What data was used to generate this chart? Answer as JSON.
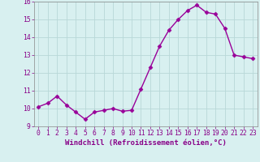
{
  "x": [
    0,
    1,
    2,
    3,
    4,
    5,
    6,
    7,
    8,
    9,
    10,
    11,
    12,
    13,
    14,
    15,
    16,
    17,
    18,
    19,
    20,
    21,
    22,
    23
  ],
  "y": [
    10.1,
    10.3,
    10.7,
    10.2,
    9.8,
    9.4,
    9.8,
    9.9,
    10.0,
    9.85,
    9.9,
    11.1,
    12.3,
    13.5,
    14.4,
    15.0,
    15.5,
    15.8,
    15.4,
    15.3,
    14.5,
    13.0,
    12.9,
    12.8
  ],
  "line_color": "#990099",
  "marker": "D",
  "marker_size": 2.5,
  "bg_color": "#d8f0f0",
  "grid_color": "#b8d8d8",
  "xlabel": "Windchill (Refroidissement éolien,°C)",
  "xlim": [
    -0.5,
    23.5
  ],
  "ylim": [
    9.0,
    16.0
  ],
  "yticks": [
    9,
    10,
    11,
    12,
    13,
    14,
    15,
    16
  ],
  "xticks": [
    0,
    1,
    2,
    3,
    4,
    5,
    6,
    7,
    8,
    9,
    10,
    11,
    12,
    13,
    14,
    15,
    16,
    17,
    18,
    19,
    20,
    21,
    22,
    23
  ],
  "tick_color": "#880088",
  "label_fontsize": 6.5,
  "tick_fontsize": 5.8,
  "linewidth": 1.0
}
